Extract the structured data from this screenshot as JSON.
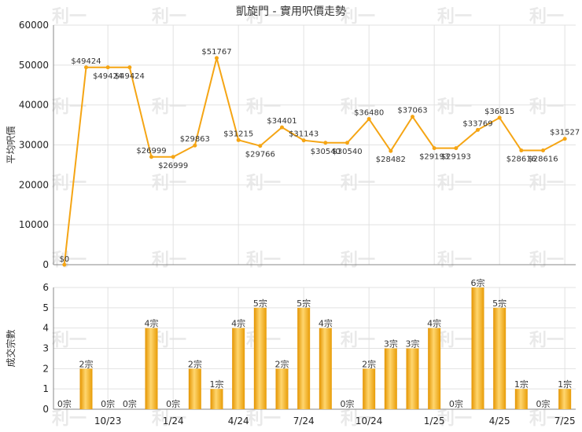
{
  "chart_data": [
    {
      "type": "line",
      "title": "凱旋門 - 實用呎價走勢",
      "ylabel": "平均呎價",
      "ylim": [
        0,
        60000
      ],
      "yticks": [
        0,
        10000,
        20000,
        30000,
        40000,
        50000,
        60000
      ],
      "color": "#f5a514",
      "values": [
        0,
        49424,
        49424,
        49424,
        26999,
        26999,
        29863,
        51767,
        31215,
        29766,
        34401,
        31143,
        30540,
        30540,
        36480,
        28482,
        37063,
        29193,
        29193,
        33769,
        36815,
        28616,
        28616,
        31527
      ],
      "labels": [
        "$0",
        "$49424",
        "$49424",
        "$49424",
        "$26999",
        "$26999",
        "$29863",
        "$51767",
        "$31215",
        "$29766",
        "$34401",
        "$31143",
        "$30540",
        "$30540",
        "$36480",
        "$28482",
        "$37063",
        "$29193",
        "$29193",
        "$33769",
        "$36815",
        "$28616",
        "$28616",
        "$31527"
      ]
    },
    {
      "type": "bar",
      "ylabel": "成交宗數",
      "ylim": [
        0,
        6
      ],
      "yticks": [
        0,
        1,
        2,
        3,
        4,
        5,
        6
      ],
      "color": "#f5a514",
      "values": [
        0,
        2,
        0,
        0,
        4,
        0,
        2,
        1,
        4,
        5,
        2,
        5,
        4,
        0,
        2,
        3,
        3,
        4,
        0,
        6,
        5,
        1,
        0,
        1
      ],
      "labels": [
        "0宗",
        "2宗",
        "0宗",
        "0宗",
        "4宗",
        "0宗",
        "2宗",
        "1宗",
        "4宗",
        "5宗",
        "2宗",
        "5宗",
        "4宗",
        "0宗",
        "2宗",
        "3宗",
        "3宗",
        "4宗",
        "0宗",
        "6宗",
        "5宗",
        "1宗",
        "0宗",
        "1宗"
      ]
    }
  ],
  "xticks": [
    {
      "index": 2,
      "label": "10/23"
    },
    {
      "index": 5,
      "label": "1/24"
    },
    {
      "index": 8,
      "label": "4/24"
    },
    {
      "index": 11,
      "label": "7/24"
    },
    {
      "index": 14,
      "label": "10/24"
    },
    {
      "index": 17,
      "label": "1/25"
    },
    {
      "index": 20,
      "label": "4/25"
    },
    {
      "index": 23,
      "label": "7/25"
    }
  ],
  "watermark": "利一"
}
